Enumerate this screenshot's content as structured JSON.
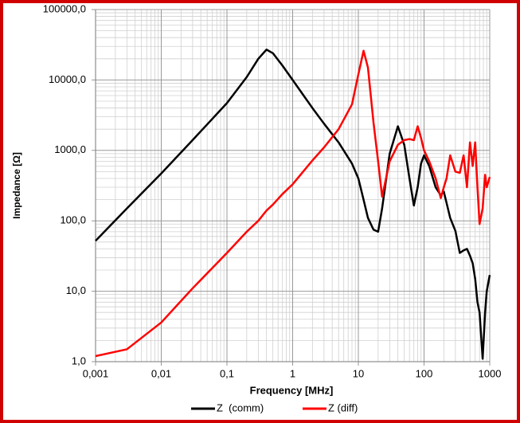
{
  "chart_data": {
    "type": "line",
    "x_label": "Frequency  [MHz]",
    "y_label": "Impedance [Ω]",
    "x": [
      0.001,
      0.003,
      0.01,
      0.03,
      0.1,
      0.2,
      0.3,
      0.4,
      0.5,
      0.7,
      1,
      2,
      3,
      5,
      8,
      10,
      12,
      14,
      17,
      20,
      23,
      30,
      40,
      50,
      60,
      70,
      80,
      90,
      100,
      120,
      150,
      180,
      200,
      220,
      250,
      300,
      350,
      400,
      450,
      500,
      550,
      600,
      650,
      700,
      780,
      850,
      900,
      1000
    ],
    "series": [
      {
        "name": "Z  (comm)",
        "color": "#000000",
        "values": [
          52,
          150,
          470,
          1400,
          4700,
          11000,
          20000,
          27000,
          24000,
          16000,
          10000,
          4000,
          2400,
          1300,
          650,
          400,
          200,
          110,
          75,
          70,
          150,
          900,
          2200,
          1200,
          400,
          165,
          300,
          650,
          850,
          600,
          300,
          230,
          260,
          180,
          110,
          72,
          35,
          38,
          40,
          32,
          25,
          15,
          7,
          5,
          1.1,
          5,
          10,
          17
        ]
      },
      {
        "name": "Z (diff)",
        "color": "#ff0000",
        "values": [
          1.2,
          1.5,
          3.6,
          11,
          35,
          70,
          100,
          140,
          170,
          240,
          330,
          720,
          1100,
          2000,
          4500,
          12000,
          26000,
          15000,
          2500,
          700,
          220,
          700,
          1200,
          1400,
          1450,
          1400,
          2200,
          1500,
          1000,
          700,
          400,
          210,
          300,
          400,
          850,
          500,
          480,
          850,
          300,
          1300,
          600,
          1300,
          300,
          90,
          150,
          450,
          300,
          420
        ]
      }
    ],
    "xlim": [
      0.001,
      1000
    ],
    "ylim": [
      1,
      100000
    ],
    "xticks": [
      {
        "value": 0.001,
        "label": "0,001"
      },
      {
        "value": 0.01,
        "label": "0,01"
      },
      {
        "value": 0.1,
        "label": "0,1"
      },
      1,
      10,
      100,
      1000
    ],
    "yticks": [
      {
        "value": 1,
        "label": "1,0"
      },
      {
        "value": 10,
        "label": "10,0"
      },
      {
        "value": 100,
        "label": "100,0"
      },
      {
        "value": 1000,
        "label": "1000,0"
      },
      {
        "value": 10000,
        "label": "10000,0"
      },
      {
        "value": 100000,
        "label": "100000,0"
      }
    ],
    "x_log": true,
    "y_log": true,
    "grid": true,
    "legend": "bottom"
  }
}
